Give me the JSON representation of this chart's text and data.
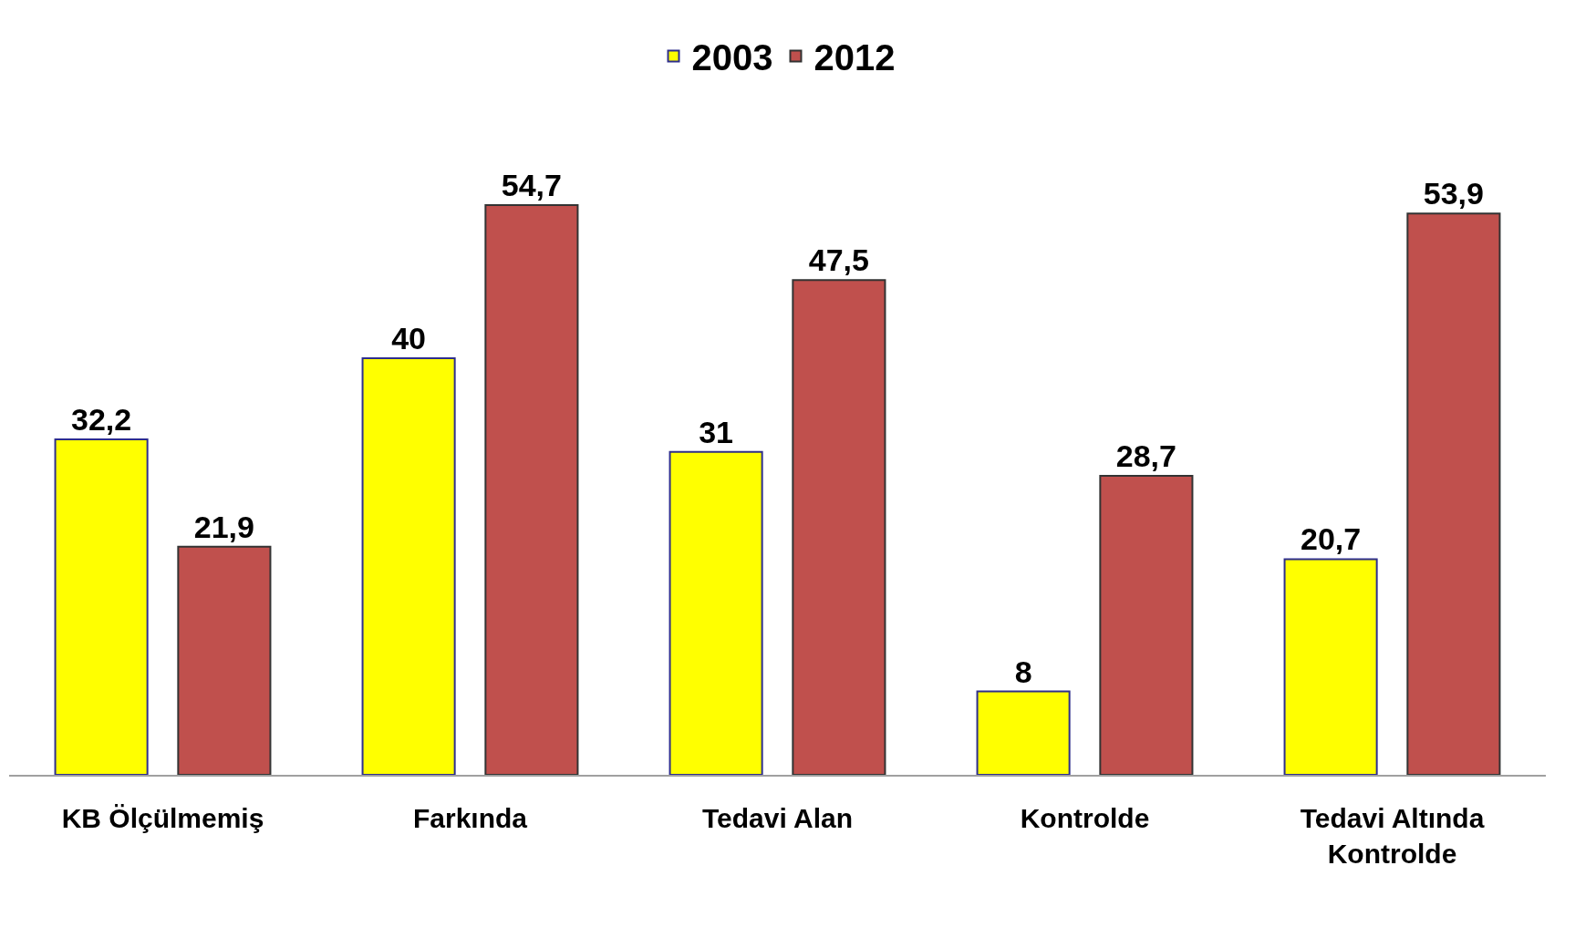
{
  "chart_data": {
    "type": "bar",
    "categories": [
      "KB Ölçülmemiş",
      "Farkında",
      "Tedavi Alan",
      "Kontrolde",
      "Tedavi Altında Kontrolde"
    ],
    "series": [
      {
        "name": "2003",
        "color": "#ffff00",
        "values": [
          32.2,
          40,
          31,
          8,
          20.7
        ],
        "value_labels": [
          "32,2",
          "40",
          "31",
          "8",
          "20,7"
        ]
      },
      {
        "name": "2012",
        "color": "#c0504d",
        "values": [
          21.9,
          54.7,
          47.5,
          28.7,
          53.9
        ],
        "value_labels": [
          "21,9",
          "54,7",
          "47,5",
          "28,7",
          "53,9"
        ]
      }
    ],
    "legend": "top"
  }
}
